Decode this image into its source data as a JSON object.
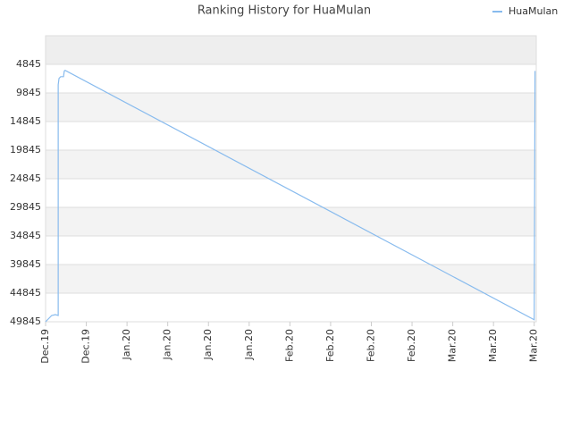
{
  "chart_data": {
    "type": "line",
    "title": "Ranking History for HuaMulan",
    "x": [
      0,
      0.15,
      0.24,
      0.31,
      0.31,
      0.33,
      0.37,
      0.44,
      0.46,
      0.48,
      12.0,
      12.02
    ],
    "series": [
      {
        "name": "HuaMulan",
        "color": "#88bbee",
        "values": [
          49845,
          48750,
          48600,
          48750,
          8400,
          7300,
          7000,
          7000,
          6000,
          5900,
          49500,
          6000
        ]
      }
    ],
    "xlim": [
      0,
      12.05
    ],
    "xticks": [
      {
        "value": 0,
        "label": "Dec.19"
      },
      {
        "value": 1,
        "label": "Dec.19"
      },
      {
        "value": 2,
        "label": "Jan.20"
      },
      {
        "value": 3,
        "label": "Jan.20"
      },
      {
        "value": 4,
        "label": "Jan.20"
      },
      {
        "value": 5,
        "label": "Jan.20"
      },
      {
        "value": 6,
        "label": "Feb.20"
      },
      {
        "value": 7,
        "label": "Feb.20"
      },
      {
        "value": 8,
        "label": "Feb.20"
      },
      {
        "value": 9,
        "label": "Feb.20"
      },
      {
        "value": 10,
        "label": "Mar.20"
      },
      {
        "value": 11,
        "label": "Mar.20"
      },
      {
        "value": 12,
        "label": "Mar.20"
      }
    ],
    "ylim": [
      49845,
      -155
    ],
    "yticks": [
      4845,
      9845,
      14845,
      19845,
      24845,
      29845,
      34845,
      39845,
      44845,
      49845
    ],
    "grid": true,
    "legend": "top-right"
  }
}
